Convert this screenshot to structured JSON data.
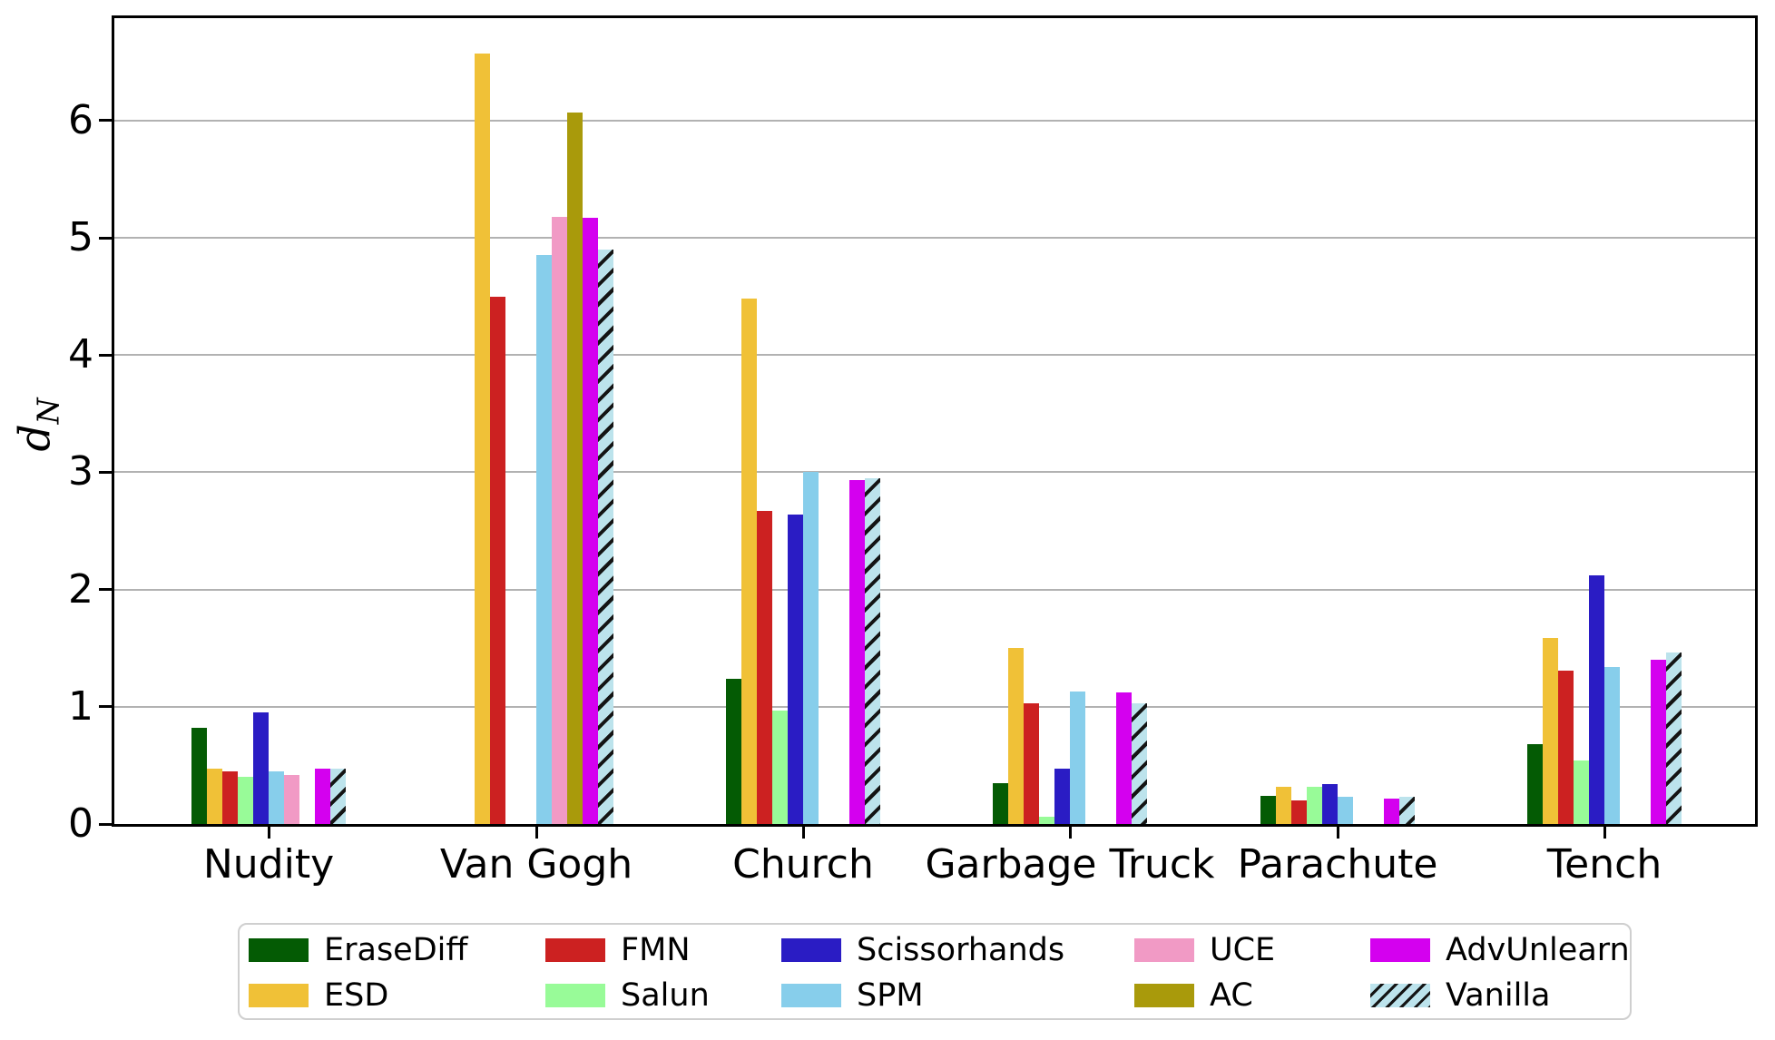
{
  "chart_data": {
    "type": "bar",
    "title": "",
    "ylabel": "d_N",
    "ylabel_parts": {
      "main": "d",
      "sub": "N"
    },
    "categories": [
      "Nudity",
      "Van Gogh",
      "Church",
      "Garbage Truck",
      "Parachute",
      "Tench"
    ],
    "yticks": [
      0,
      1,
      2,
      3,
      4,
      5,
      6
    ],
    "ylim": [
      0,
      6.9
    ],
    "grid": "horizontal-gray",
    "legend_position": "bottom-center",
    "legend_columns": 5,
    "series": [
      {
        "name": "EraseDiff",
        "color": "#045B04",
        "hatch": false,
        "values": [
          0.82,
          0,
          1.24,
          0.35,
          0.24,
          0.68
        ]
      },
      {
        "name": "ESD",
        "color": "#F0C137",
        "hatch": false,
        "values": [
          0.47,
          6.57,
          4.48,
          1.5,
          0.32,
          1.59
        ]
      },
      {
        "name": "FMN",
        "color": "#CC2121",
        "hatch": false,
        "values": [
          0.45,
          4.5,
          2.67,
          1.03,
          0.2,
          1.31
        ]
      },
      {
        "name": "Salun",
        "color": "#98FB98",
        "hatch": false,
        "values": [
          0.4,
          0,
          0.97,
          0.06,
          0.32,
          0.54
        ]
      },
      {
        "name": "Scissorhands",
        "color": "#2A1CC4",
        "hatch": false,
        "values": [
          0.95,
          0,
          2.64,
          0.47,
          0.34,
          2.12
        ]
      },
      {
        "name": "SPM",
        "color": "#87CEEB",
        "hatch": false,
        "values": [
          0.45,
          4.85,
          3.0,
          1.13,
          0.23,
          1.34
        ]
      },
      {
        "name": "UCE",
        "color": "#F19AC5",
        "hatch": false,
        "values": [
          0.42,
          5.18,
          0,
          0,
          0,
          0
        ]
      },
      {
        "name": "AC",
        "color": "#A99A0B",
        "hatch": false,
        "values": [
          0,
          6.07,
          0,
          0,
          0,
          0
        ]
      },
      {
        "name": "AdvUnlearn",
        "color": "#D400EF",
        "hatch": false,
        "values": [
          0.47,
          5.17,
          2.93,
          1.12,
          0.22,
          1.4
        ]
      },
      {
        "name": "Vanilla",
        "color": "#BCE3EC",
        "hatch": true,
        "hatch_color": "#141414",
        "values": [
          0.47,
          4.9,
          2.95,
          1.03,
          0.23,
          1.46
        ]
      }
    ]
  }
}
